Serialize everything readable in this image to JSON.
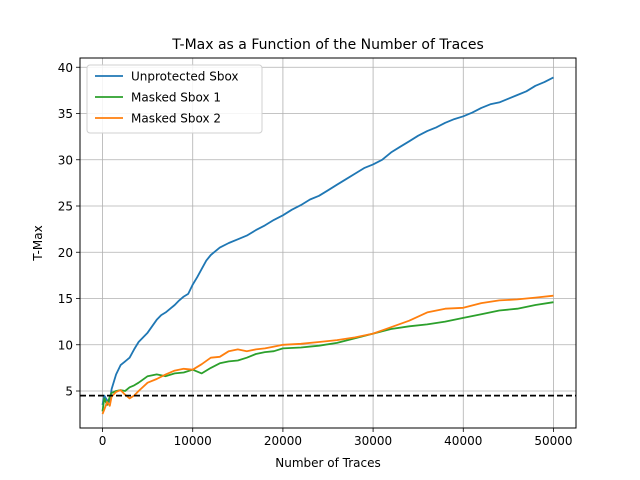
{
  "chart_data": {
    "type": "line",
    "title": "T-Max as a Function of the Number of Traces",
    "xlabel": "Number of Traces",
    "ylabel": "T-Max",
    "xlim": [
      -2500,
      52500
    ],
    "ylim": [
      1,
      41
    ],
    "xticks": [
      0,
      10000,
      20000,
      30000,
      40000,
      50000
    ],
    "xtick_labels": [
      "0",
      "10000",
      "20000",
      "30000",
      "40000",
      "50000"
    ],
    "yticks": [
      5,
      10,
      15,
      20,
      25,
      30,
      35,
      40
    ],
    "ytick_labels": [
      "5",
      "10",
      "15",
      "20",
      "25",
      "30",
      "35",
      "40"
    ],
    "grid": true,
    "legend_position": "top-left",
    "threshold": {
      "y": 4.5,
      "color": "#000000",
      "style": "dashed"
    },
    "series": [
      {
        "name": "Unprotected Sbox",
        "color": "#1f77b4",
        "x": [
          0,
          200,
          500,
          800,
          1000,
          1500,
          2000,
          2500,
          3000,
          3500,
          4000,
          4500,
          5000,
          5500,
          6000,
          6500,
          7000,
          7500,
          8000,
          8500,
          9000,
          9500,
          10000,
          10500,
          11000,
          11500,
          12000,
          13000,
          14000,
          15000,
          16000,
          17000,
          18000,
          19000,
          20000,
          21000,
          22000,
          23000,
          24000,
          25000,
          26000,
          27000,
          28000,
          29000,
          30000,
          31000,
          32000,
          33000,
          34000,
          35000,
          36000,
          37000,
          38000,
          39000,
          40000,
          41000,
          42000,
          43000,
          44000,
          45000,
          46000,
          47000,
          48000,
          49000,
          50000
        ],
        "y": [
          3.5,
          4.5,
          4.0,
          3.8,
          5.2,
          6.8,
          7.8,
          8.2,
          8.6,
          9.5,
          10.3,
          10.8,
          11.3,
          12.0,
          12.7,
          13.2,
          13.5,
          13.9,
          14.3,
          14.8,
          15.2,
          15.5,
          16.5,
          17.3,
          18.2,
          19.1,
          19.7,
          20.5,
          21.0,
          21.4,
          21.8,
          22.4,
          22.9,
          23.5,
          24.0,
          24.6,
          25.1,
          25.7,
          26.1,
          26.7,
          27.3,
          27.9,
          28.5,
          29.1,
          29.5,
          30.0,
          30.8,
          31.4,
          32.0,
          32.6,
          33.1,
          33.5,
          34.0,
          34.4,
          34.7,
          35.1,
          35.6,
          36.0,
          36.2,
          36.6,
          37.0,
          37.4,
          38.0,
          38.4,
          38.9
        ]
      },
      {
        "name": "Masked Sbox 1",
        "color": "#2ca02c",
        "x": [
          0,
          200,
          500,
          800,
          1000,
          1500,
          2000,
          2500,
          3000,
          3500,
          4000,
          5000,
          6000,
          7000,
          8000,
          9000,
          10000,
          11000,
          12000,
          13000,
          14000,
          15000,
          16000,
          17000,
          18000,
          19000,
          20000,
          22000,
          24000,
          26000,
          28000,
          30000,
          32000,
          34000,
          36000,
          38000,
          40000,
          42000,
          44000,
          46000,
          48000,
          50000
        ],
        "y": [
          2.8,
          4.2,
          3.5,
          4.4,
          4.8,
          5.0,
          5.1,
          5.0,
          5.4,
          5.6,
          5.9,
          6.6,
          6.8,
          6.6,
          6.9,
          7.0,
          7.3,
          6.9,
          7.5,
          8.0,
          8.2,
          8.3,
          8.6,
          9.0,
          9.2,
          9.3,
          9.6,
          9.7,
          9.9,
          10.2,
          10.7,
          11.2,
          11.7,
          12.0,
          12.2,
          12.5,
          12.9,
          13.3,
          13.7,
          13.9,
          14.3,
          14.6
        ]
      },
      {
        "name": "Masked Sbox 2",
        "color": "#ff7f0e",
        "x": [
          0,
          200,
          500,
          800,
          1000,
          1500,
          2000,
          2500,
          3000,
          3500,
          4000,
          5000,
          6000,
          7000,
          8000,
          9000,
          10000,
          11000,
          12000,
          13000,
          14000,
          15000,
          16000,
          17000,
          18000,
          19000,
          20000,
          22000,
          24000,
          26000,
          28000,
          30000,
          32000,
          34000,
          36000,
          38000,
          40000,
          42000,
          44000,
          46000,
          48000,
          50000
        ],
        "y": [
          2.5,
          3.0,
          3.8,
          3.4,
          4.4,
          4.9,
          5.1,
          4.6,
          4.2,
          4.5,
          5.0,
          5.9,
          6.3,
          6.8,
          7.2,
          7.4,
          7.3,
          7.9,
          8.6,
          8.7,
          9.3,
          9.5,
          9.3,
          9.5,
          9.6,
          9.8,
          10.0,
          10.1,
          10.3,
          10.5,
          10.8,
          11.2,
          11.9,
          12.6,
          13.5,
          13.9,
          14.0,
          14.5,
          14.8,
          14.9,
          15.1,
          15.3
        ]
      }
    ]
  }
}
